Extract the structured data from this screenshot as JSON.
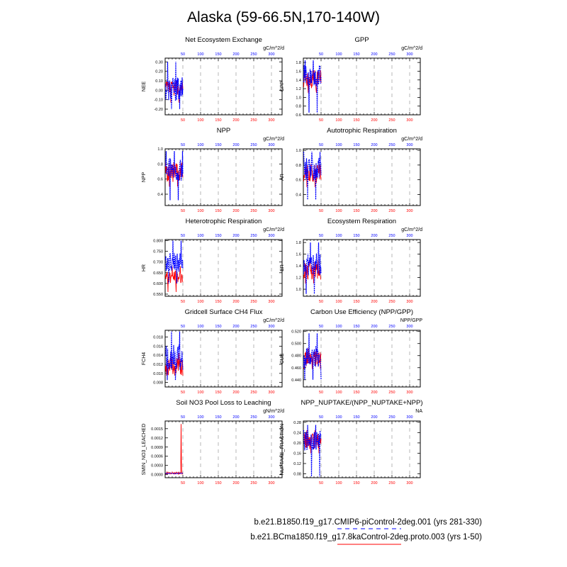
{
  "figure": {
    "title": "Alaska (59-66.5N,170-140W)",
    "colors": {
      "series1": "#0000ff",
      "series2": "#ff0000",
      "axis": "#000000",
      "grid": "#999999"
    }
  },
  "legend": [
    {
      "label": "b.e21.B1850.f19_g17.CMIP6-piControl-2deg.001 (yrs 281-330)",
      "color": "#0000ff",
      "style": "dashed"
    },
    {
      "label": "b.e21.BCma1850.f19_g17.8kaControl-2deg.proto.003 (yrs 1-50)",
      "color": "#ff0000",
      "style": "solid"
    }
  ],
  "chart_data": [
    {
      "type": "line",
      "title": "Net Ecosystem Exchange",
      "units": "gC/m^2/d",
      "ylabel": "NEE",
      "xlim": [
        0,
        330
      ],
      "ylim": [
        -0.26,
        0.34
      ],
      "yticks": [
        -0.2,
        -0.1,
        0.0,
        0.1,
        0.2,
        0.3
      ],
      "ytick_labels": [
        "-0.20",
        "-0.10",
        "0.00",
        "0.10",
        "0.20",
        "0.30"
      ],
      "x_ticks_bottom": [
        50,
        100,
        150,
        200,
        250,
        300
      ],
      "x_ticks_top": [
        50,
        100,
        150,
        200,
        250,
        300
      ],
      "series": [
        {
          "x_range": [
            1,
            50
          ],
          "mean": 0.02,
          "amp": 0.05,
          "min": -0.13,
          "max": 0.09
        },
        {
          "x_range": [
            1,
            50
          ],
          "mean": 0.01,
          "amp": 0.08,
          "min": -0.2,
          "max": 0.3
        }
      ]
    },
    {
      "type": "line",
      "title": "GPP",
      "units": "gC/m^2/d",
      "ylabel": "GPP",
      "xlim": [
        0,
        330
      ],
      "ylim": [
        0.6,
        1.9
      ],
      "yticks": [
        0.6,
        0.8,
        1.0,
        1.2,
        1.4,
        1.6,
        1.8
      ],
      "ytick_labels": [
        "0.6",
        "0.8",
        "1.0",
        "1.2",
        "1.4",
        "1.6",
        "1.8"
      ],
      "x_ticks_bottom": [
        50,
        100,
        150,
        200,
        250,
        300
      ],
      "x_ticks_top": [
        50,
        100,
        150,
        200,
        250,
        300
      ],
      "series": [
        {
          "x_range": [
            1,
            50
          ],
          "mean": 1.4,
          "amp": 0.15,
          "min": 1.1,
          "max": 1.62
        },
        {
          "x_range": [
            1,
            50
          ],
          "mean": 1.5,
          "amp": 0.15,
          "min": 0.65,
          "max": 1.85
        }
      ]
    },
    {
      "type": "line",
      "title": "NPP",
      "units": "gC/m^2/d",
      "ylabel": "NPP",
      "xlim": [
        0,
        330
      ],
      "ylim": [
        0.25,
        1.0
      ],
      "yticks": [
        0.4,
        0.6,
        0.8,
        1.0
      ],
      "ytick_labels": [
        "0.4",
        "0.6",
        "0.8",
        "1.0"
      ],
      "x_ticks_bottom": [
        50,
        100,
        150,
        200,
        250,
        300
      ],
      "x_ticks_top": [
        50,
        100,
        150,
        200,
        250,
        300
      ],
      "series": [
        {
          "x_range": [
            1,
            50
          ],
          "mean": 0.68,
          "amp": 0.08,
          "min": 0.5,
          "max": 0.82
        },
        {
          "x_range": [
            1,
            50
          ],
          "mean": 0.72,
          "amp": 0.1,
          "min": 0.32,
          "max": 0.97
        }
      ]
    },
    {
      "type": "line",
      "title": "Autotrophic Respiration",
      "units": "gC/m^2/d",
      "ylabel": "AR",
      "xlim": [
        0,
        330
      ],
      "ylim": [
        0.25,
        1.02
      ],
      "yticks": [
        0.4,
        0.6,
        0.8,
        1.0
      ],
      "ytick_labels": [
        "0.4",
        "0.6",
        "0.8",
        "1.0"
      ],
      "x_ticks_bottom": [
        50,
        100,
        150,
        200,
        250,
        300
      ],
      "x_ticks_top": [
        50,
        100,
        150,
        200,
        250,
        300
      ],
      "series": [
        {
          "x_range": [
            1,
            50
          ],
          "mean": 0.68,
          "amp": 0.08,
          "min": 0.5,
          "max": 0.82
        },
        {
          "x_range": [
            1,
            50
          ],
          "mean": 0.74,
          "amp": 0.1,
          "min": 0.33,
          "max": 0.98
        }
      ]
    },
    {
      "type": "line",
      "title": "Heterotrophic Respiration",
      "units": "gC/m^2/d",
      "ylabel": "HR",
      "xlim": [
        0,
        330
      ],
      "ylim": [
        0.54,
        0.805
      ],
      "yticks": [
        0.55,
        0.6,
        0.65,
        0.7,
        0.75,
        0.8
      ],
      "ytick_labels": [
        "0.550",
        "0.600",
        "0.650",
        "0.700",
        "0.750",
        "0.800"
      ],
      "x_ticks_bottom": [
        50,
        100,
        150,
        200,
        250,
        300
      ],
      "x_ticks_top": [
        50,
        100,
        150,
        200,
        250,
        300
      ],
      "series": [
        {
          "x_range": [
            1,
            50
          ],
          "mean": 0.63,
          "amp": 0.02,
          "min": 0.56,
          "max": 0.68
        },
        {
          "x_range": [
            1,
            50
          ],
          "mean": 0.7,
          "amp": 0.03,
          "min": 0.6,
          "max": 0.8
        }
      ]
    },
    {
      "type": "line",
      "title": "Ecosystem Respiration",
      "units": "gC/m^2/d",
      "ylabel": "ER",
      "xlim": [
        0,
        330
      ],
      "ylim": [
        0.88,
        1.85
      ],
      "yticks": [
        1.0,
        1.2,
        1.4,
        1.6,
        1.8
      ],
      "ytick_labels": [
        "1.0",
        "1.2",
        "1.4",
        "1.6",
        "1.8"
      ],
      "x_ticks_bottom": [
        50,
        100,
        150,
        200,
        250,
        300
      ],
      "x_ticks_top": [
        50,
        100,
        150,
        200,
        250,
        300
      ],
      "series": [
        {
          "x_range": [
            1,
            50
          ],
          "mean": 1.32,
          "amp": 0.1,
          "min": 1.1,
          "max": 1.5
        },
        {
          "x_range": [
            1,
            50
          ],
          "mean": 1.42,
          "amp": 0.12,
          "min": 0.92,
          "max": 1.8
        }
      ]
    },
    {
      "type": "line",
      "title": "Gridcell Surface CH4 Flux",
      "units": "gC/m^2/d",
      "ylabel": "FCH4",
      "xlim": [
        0,
        330
      ],
      "ylim": [
        0.007,
        0.0195
      ],
      "yticks": [
        0.008,
        0.01,
        0.012,
        0.014,
        0.016,
        0.018
      ],
      "ytick_labels": [
        "0.008",
        "0.010",
        "0.012",
        "0.014",
        "0.016",
        "0.018"
      ],
      "x_ticks_bottom": [
        50,
        100,
        150,
        200,
        250,
        300
      ],
      "x_ticks_top": [
        50,
        100,
        150,
        200,
        250,
        300
      ],
      "series": [
        {
          "x_range": [
            1,
            50
          ],
          "mean": 0.0115,
          "amp": 0.0012,
          "min": 0.0095,
          "max": 0.0145
        },
        {
          "x_range": [
            1,
            50
          ],
          "mean": 0.0135,
          "amp": 0.0018,
          "min": 0.0085,
          "max": 0.0192
        }
      ]
    },
    {
      "type": "line",
      "title": "Carbon Use Efficiency (NPP/GPP)",
      "units": "NPP/GPP",
      "ylabel": "CUE",
      "xlim": [
        0,
        330
      ],
      "ylim": [
        0.428,
        0.522
      ],
      "yticks": [
        0.44,
        0.46,
        0.48,
        0.5,
        0.52
      ],
      "ytick_labels": [
        "0.440",
        "0.460",
        "0.480",
        "0.500",
        "0.520"
      ],
      "x_ticks_bottom": [
        50,
        100,
        150,
        200,
        250,
        300
      ],
      "x_ticks_top": [
        50,
        100,
        150,
        200,
        250,
        300
      ],
      "series": [
        {
          "x_range": [
            1,
            50
          ],
          "mean": 0.474,
          "amp": 0.008,
          "min": 0.458,
          "max": 0.492
        },
        {
          "x_range": [
            1,
            50
          ],
          "mean": 0.478,
          "amp": 0.012,
          "min": 0.44,
          "max": 0.517
        }
      ]
    },
    {
      "type": "line",
      "title": "Soil NO3 Pool Loss to Leaching",
      "units": "gN/m^2/d",
      "ylabel": "SMIN_NO3_LEACHED",
      "xlim": [
        0,
        330
      ],
      "ylim": [
        -0.0001,
        0.00175
      ],
      "yticks": [
        0.0,
        0.0003,
        0.0006,
        0.0009,
        0.0012,
        0.0015
      ],
      "ytick_labels": [
        "0.0000",
        "0.0003",
        "0.0006",
        "0.0009",
        "0.0012",
        "0.0015"
      ],
      "x_ticks_bottom": [
        50,
        100,
        150,
        200,
        250,
        300
      ],
      "x_ticks_top": [
        50,
        100,
        150,
        200,
        250,
        300
      ],
      "series": [
        {
          "x_range": [
            1,
            50
          ],
          "mean": 5e-05,
          "amp": 2e-05,
          "spike_x": 45,
          "spike_y": 0.00165
        },
        {
          "x_range": [
            1,
            50
          ],
          "mean": 4e-05,
          "amp": 5e-06
        }
      ]
    },
    {
      "type": "line",
      "title": "NPP_NUPTAKE/(NPP_NUPTAKE+NPP)",
      "units": "NA",
      "ylabel": "NUPTAKE_FRACTION",
      "xlim": [
        0,
        330
      ],
      "ylim": [
        0.065,
        0.285
      ],
      "yticks": [
        0.08,
        0.12,
        0.16,
        0.2,
        0.24,
        0.28
      ],
      "ytick_labels": [
        "0.08",
        "0.12",
        "0.16",
        "0.20",
        "0.24",
        "0.28"
      ],
      "x_ticks_bottom": [
        50,
        100,
        150,
        200,
        250,
        300
      ],
      "x_ticks_top": [
        50,
        100,
        150,
        200,
        250,
        300
      ],
      "series": [
        {
          "x_range": [
            1,
            50
          ],
          "mean": 0.205,
          "amp": 0.02,
          "min": 0.16,
          "max": 0.25
        },
        {
          "x_range": [
            1,
            50
          ],
          "mean": 0.21,
          "amp": 0.025,
          "min": 0.07,
          "max": 0.27
        }
      ]
    }
  ]
}
